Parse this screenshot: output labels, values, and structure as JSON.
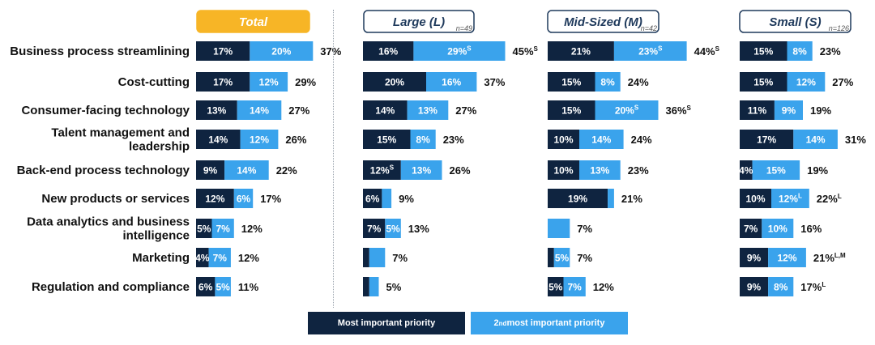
{
  "colors": {
    "primary": "#0f2440",
    "secondary": "#3aa3ec",
    "total_header": "#f7b526",
    "header_border": "#1f3a5c"
  },
  "legend": {
    "primary": "Most important priority",
    "secondary_prefix": "2",
    "secondary_sup": "nd",
    "secondary_suffix": " most important priority"
  },
  "chart_data": {
    "type": "bar",
    "stacked": true,
    "orientation": "horizontal",
    "categories": [
      "Business process streamlining",
      "Cost-cutting",
      "Consumer-facing technology",
      "Talent management and leadership",
      "Back-end process technology",
      "New products or services",
      "Data analytics and business intelligence",
      "Marketing",
      "Regulation and compliance"
    ],
    "category_lines": [
      [
        "Business process streamlining"
      ],
      [
        "Cost-cutting"
      ],
      [
        "Consumer-facing technology"
      ],
      [
        "Talent management and",
        "leadership"
      ],
      [
        "Back-end process technology"
      ],
      [
        "New products or services"
      ],
      [
        "Data analytics and business",
        "intelligence"
      ],
      [
        "Marketing"
      ],
      [
        "Regulation and compliance"
      ]
    ],
    "series_names": [
      "Most important priority",
      "2nd most important priority"
    ],
    "panels": [
      {
        "name": "Total",
        "n": "",
        "primary": [
          17,
          17,
          13,
          14,
          9,
          12,
          5,
          4,
          6
        ],
        "secondary": [
          20,
          12,
          14,
          12,
          14,
          6,
          7,
          7,
          5
        ],
        "primary_labels": [
          "17%",
          "17%",
          "13%",
          "14%",
          "9%",
          "12%",
          "5%",
          "4%",
          "6%"
        ],
        "primary_sup": [
          "",
          "",
          "",
          "",
          "",
          "",
          "",
          "",
          ""
        ],
        "secondary_labels": [
          "20%",
          "12%",
          "14%",
          "12%",
          "14%",
          "6%",
          "7%",
          "7%",
          "5%"
        ],
        "secondary_sup": [
          "",
          "",
          "",
          "",
          "",
          "",
          "",
          "",
          ""
        ],
        "totals": [
          "37%",
          "29%",
          "27%",
          "26%",
          "22%",
          "17%",
          "12%",
          "12%",
          "11%"
        ],
        "totals_sup": [
          "",
          "",
          "",
          "",
          "",
          "",
          "",
          "",
          ""
        ]
      },
      {
        "name": "Large (L)",
        "n": "n=49",
        "primary": [
          16,
          20,
          14,
          15,
          12,
          6,
          7,
          2,
          2
        ],
        "secondary": [
          29,
          16,
          13,
          8,
          13,
          3,
          5,
          5,
          3
        ],
        "primary_labels": [
          "16%",
          "20%",
          "14%",
          "15%",
          "12%",
          "6%",
          "7%",
          "",
          ""
        ],
        "primary_sup": [
          "",
          "",
          "",
          "",
          "S",
          "",
          "",
          "",
          ""
        ],
        "secondary_labels": [
          "29%",
          "16%",
          "13%",
          "8%",
          "13%",
          "",
          "5%",
          "",
          ""
        ],
        "secondary_sup": [
          "S",
          "",
          "",
          "",
          "",
          "",
          "",
          "",
          ""
        ],
        "totals": [
          "45%",
          "37%",
          "27%",
          "23%",
          "26%",
          "9%",
          "13%",
          "7%",
          "5%"
        ],
        "totals_sup": [
          "S",
          "",
          "",
          "",
          "",
          "",
          "",
          "",
          ""
        ]
      },
      {
        "name": "Mid-Sized (M)",
        "n": "n=42",
        "primary": [
          21,
          15,
          15,
          10,
          10,
          19,
          0,
          2,
          5
        ],
        "secondary": [
          23,
          8,
          20,
          14,
          13,
          2,
          7,
          5,
          7
        ],
        "primary_labels": [
          "21%",
          "15%",
          "15%",
          "10%",
          "10%",
          "19%",
          "",
          "",
          "5%"
        ],
        "primary_sup": [
          "",
          "",
          "",
          "",
          "",
          "",
          "",
          "",
          ""
        ],
        "secondary_labels": [
          "23%",
          "8%",
          "20%",
          "14%",
          "13%",
          "",
          "",
          "5%",
          "7%"
        ],
        "secondary_sup": [
          "S",
          "",
          "S",
          "",
          "",
          "",
          "",
          "",
          ""
        ],
        "totals": [
          "44%",
          "24%",
          "36%",
          "24%",
          "23%",
          "21%",
          "7%",
          "7%",
          "12%"
        ],
        "totals_sup": [
          "S",
          "",
          "S",
          "",
          "",
          "",
          "",
          "",
          ""
        ]
      },
      {
        "name": "Small (S)",
        "n": "n=126",
        "primary": [
          15,
          15,
          11,
          17,
          4,
          10,
          7,
          9,
          9
        ],
        "secondary": [
          8,
          12,
          9,
          14,
          15,
          12,
          10,
          12,
          8
        ],
        "primary_labels": [
          "15%",
          "15%",
          "11%",
          "17%",
          "4%",
          "10%",
          "7%",
          "9%",
          "9%"
        ],
        "primary_sup": [
          "",
          "",
          "",
          "",
          "",
          "",
          "",
          "",
          ""
        ],
        "secondary_labels": [
          "8%",
          "12%",
          "9%",
          "14%",
          "15%",
          "12%",
          "10%",
          "12%",
          "8%"
        ],
        "secondary_sup": [
          "",
          "",
          "",
          "",
          "",
          "L",
          "",
          "",
          ""
        ],
        "totals": [
          "23%",
          "27%",
          "19%",
          "31%",
          "19%",
          "22%",
          "16%",
          "21%",
          "17%"
        ],
        "totals_sup": [
          "",
          "",
          "",
          "",
          "",
          "L",
          "",
          "L,M",
          "L"
        ]
      }
    ]
  }
}
